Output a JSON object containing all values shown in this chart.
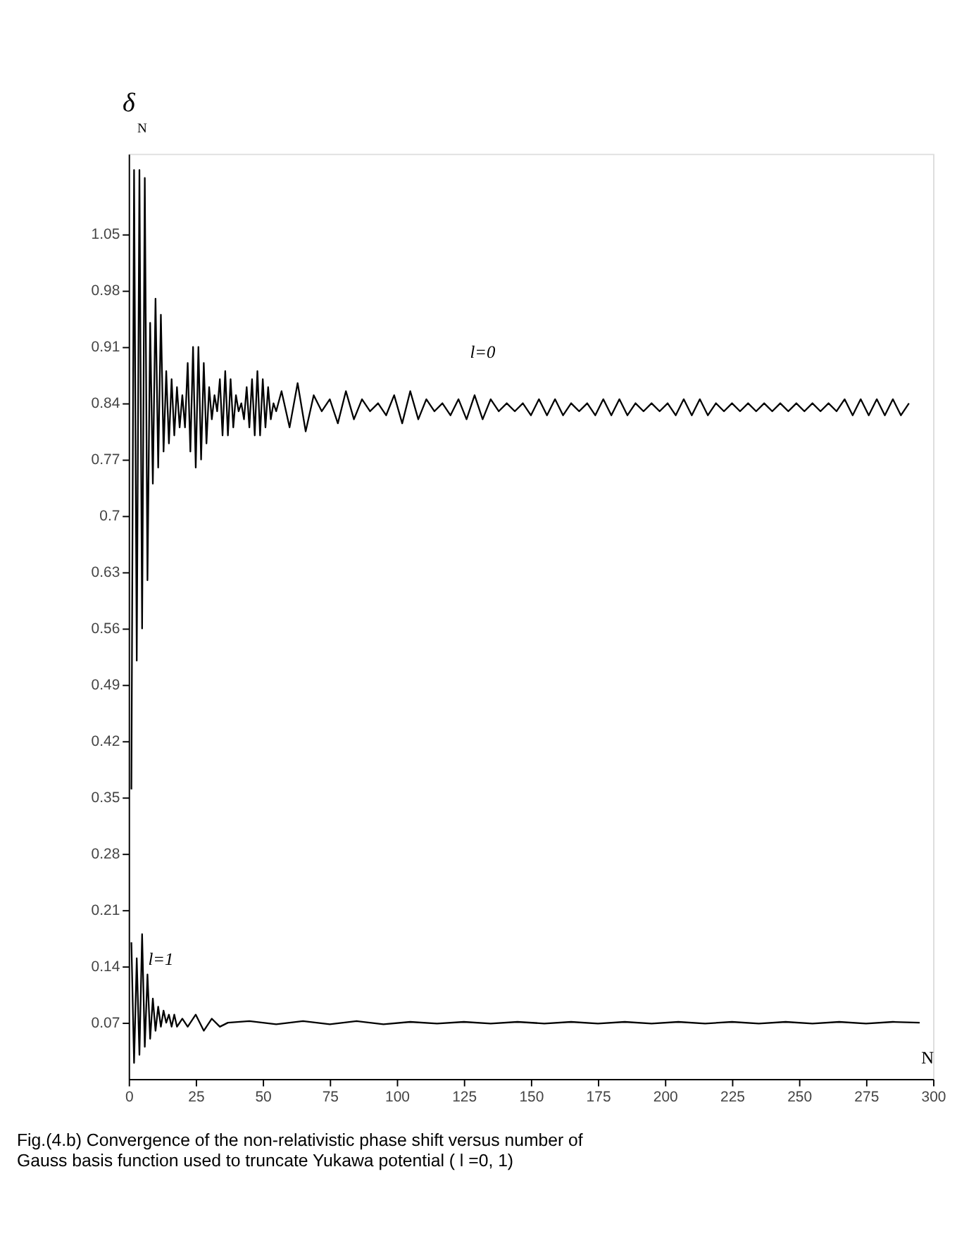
{
  "chart_data": {
    "type": "line",
    "xlabel": "N",
    "ylabel": "δ$_{N}$",
    "xlim": [
      0,
      300
    ],
    "ylim": [
      0,
      1.15
    ],
    "xticks": [
      0,
      25,
      50,
      75,
      100,
      125,
      150,
      175,
      200,
      225,
      250,
      275,
      300
    ],
    "yticks": [
      0.07,
      0.14,
      0.21,
      0.28,
      0.35,
      0.42,
      0.49,
      0.56,
      0.63,
      0.7,
      0.77,
      0.84,
      0.91,
      0.98,
      1.05
    ],
    "grid": false,
    "legend": false,
    "marker": "none",
    "line_style": "solid",
    "series": [
      {
        "name": "l=0",
        "color": "#000000",
        "x": [
          1,
          2,
          3,
          4,
          5,
          6,
          7,
          8,
          9,
          10,
          11,
          12,
          13,
          14,
          15,
          16,
          17,
          18,
          19,
          20,
          21,
          22,
          23,
          24,
          25,
          26,
          27,
          28,
          29,
          30,
          31,
          32,
          33,
          34,
          35,
          36,
          37,
          38,
          39,
          40,
          41,
          42,
          43,
          44,
          45,
          46,
          47,
          48,
          49,
          50,
          51,
          52,
          53,
          54,
          55,
          57,
          60,
          63,
          66,
          69,
          72,
          75,
          78,
          81,
          84,
          87,
          90,
          93,
          96,
          99,
          102,
          105,
          108,
          111,
          114,
          117,
          120,
          123,
          126,
          129,
          132,
          135,
          138,
          141,
          144,
          147,
          150,
          153,
          156,
          159,
          162,
          165,
          168,
          171,
          174,
          177,
          180,
          183,
          186,
          189,
          192,
          195,
          198,
          201,
          204,
          207,
          210,
          213,
          216,
          219,
          222,
          225,
          228,
          231,
          234,
          237,
          240,
          243,
          246,
          249,
          252,
          255,
          258,
          261,
          264,
          267,
          270,
          273,
          276,
          279,
          282,
          285,
          288,
          291
        ],
        "values": [
          0.36,
          1.13,
          0.52,
          1.13,
          0.56,
          1.12,
          0.62,
          0.94,
          0.74,
          0.97,
          0.76,
          0.95,
          0.78,
          0.88,
          0.79,
          0.87,
          0.8,
          0.86,
          0.81,
          0.85,
          0.81,
          0.89,
          0.78,
          0.91,
          0.76,
          0.91,
          0.77,
          0.89,
          0.79,
          0.86,
          0.82,
          0.85,
          0.83,
          0.87,
          0.8,
          0.88,
          0.8,
          0.87,
          0.81,
          0.85,
          0.83,
          0.84,
          0.82,
          0.86,
          0.81,
          0.87,
          0.8,
          0.88,
          0.8,
          0.87,
          0.81,
          0.86,
          0.82,
          0.84,
          0.83,
          0.855,
          0.81,
          0.865,
          0.805,
          0.85,
          0.83,
          0.845,
          0.815,
          0.855,
          0.82,
          0.845,
          0.83,
          0.84,
          0.825,
          0.85,
          0.815,
          0.855,
          0.82,
          0.845,
          0.83,
          0.84,
          0.825,
          0.845,
          0.82,
          0.85,
          0.82,
          0.845,
          0.83,
          0.84,
          0.83,
          0.84,
          0.825,
          0.845,
          0.825,
          0.845,
          0.825,
          0.84,
          0.83,
          0.84,
          0.825,
          0.845,
          0.825,
          0.845,
          0.825,
          0.84,
          0.83,
          0.84,
          0.83,
          0.84,
          0.825,
          0.845,
          0.825,
          0.845,
          0.825,
          0.84,
          0.83,
          0.84,
          0.83,
          0.84,
          0.83,
          0.84,
          0.83,
          0.84,
          0.83,
          0.84,
          0.83,
          0.84,
          0.83,
          0.84,
          0.83,
          0.845,
          0.825,
          0.845,
          0.825,
          0.845,
          0.825,
          0.845,
          0.825,
          0.84
        ]
      },
      {
        "name": "l=1",
        "color": "#000000",
        "x": [
          1,
          2,
          3,
          4,
          5,
          6,
          7,
          8,
          9,
          10,
          11,
          12,
          13,
          14,
          15,
          16,
          17,
          18,
          20,
          22,
          25,
          28,
          31,
          34,
          37,
          45,
          55,
          65,
          75,
          85,
          95,
          105,
          115,
          125,
          135,
          145,
          155,
          165,
          175,
          185,
          195,
          205,
          215,
          225,
          235,
          245,
          255,
          265,
          275,
          285,
          295
        ],
        "values": [
          0.17,
          0.02,
          0.15,
          0.03,
          0.18,
          0.04,
          0.13,
          0.05,
          0.1,
          0.06,
          0.09,
          0.065,
          0.085,
          0.07,
          0.08,
          0.065,
          0.08,
          0.065,
          0.075,
          0.065,
          0.08,
          0.06,
          0.075,
          0.065,
          0.07,
          0.072,
          0.068,
          0.072,
          0.068,
          0.072,
          0.068,
          0.071,
          0.069,
          0.071,
          0.069,
          0.071,
          0.069,
          0.071,
          0.069,
          0.071,
          0.069,
          0.071,
          0.069,
          0.071,
          0.069,
          0.071,
          0.069,
          0.071,
          0.069,
          0.071,
          0.07
        ]
      }
    ],
    "annotations": [
      "Fig.(4.b) Convergence of the non-relativistic phase shift versus number of Gauss basis function used to truncate Yukawa potential ( l =0, 1)"
    ]
  }
}
